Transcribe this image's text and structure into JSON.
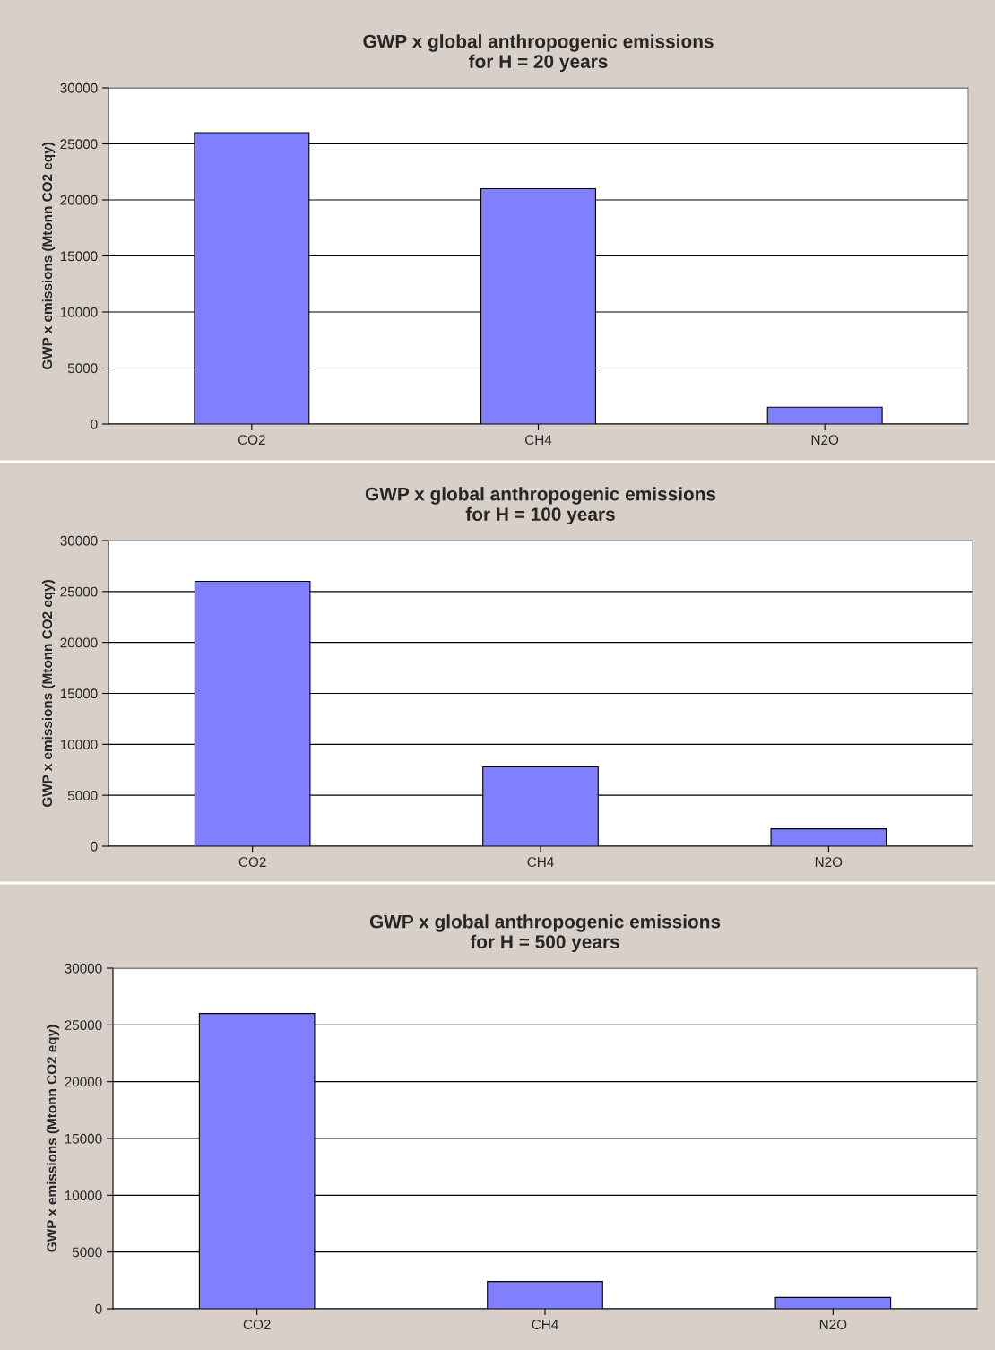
{
  "chart_data": [
    {
      "type": "bar",
      "title": "GWP x global anthropogenic emissions\nfor H = 20 years",
      "ylabel": "GWP x emissions (Mtonn CO2 eqy)",
      "categories": [
        "CO2",
        "CH4",
        "N2O"
      ],
      "values": [
        26000,
        21000,
        1500
      ],
      "color": "#8080ff",
      "ylim": [
        0,
        30000
      ],
      "yticks": [
        0,
        5000,
        10000,
        15000,
        20000,
        25000,
        30000
      ],
      "grid": "y",
      "legend": false
    },
    {
      "type": "bar",
      "title": "GWP x global anthropogenic emissions\nfor H = 100 years",
      "ylabel": "GWP x emissions (Mtonn CO2 eqy)",
      "categories": [
        "CO2",
        "CH4",
        "N2O"
      ],
      "values": [
        26000,
        7800,
        1700
      ],
      "color": "#8080ff",
      "ylim": [
        0,
        30000
      ],
      "yticks": [
        0,
        5000,
        10000,
        15000,
        20000,
        25000,
        30000
      ],
      "grid": "y",
      "legend": false
    },
    {
      "type": "bar",
      "title": "GWP x global anthropogenic emissions\nfor H = 500 years",
      "ylabel": "GWP x emissions (Mtonn CO2 eqy)",
      "categories": [
        "CO2",
        "CH4",
        "N2O"
      ],
      "values": [
        26000,
        2400,
        1000
      ],
      "color": "#8080ff",
      "ylim": [
        0,
        30000
      ],
      "yticks": [
        0,
        5000,
        10000,
        15000,
        20000,
        25000,
        30000
      ],
      "grid": "y",
      "legend": false
    }
  ]
}
